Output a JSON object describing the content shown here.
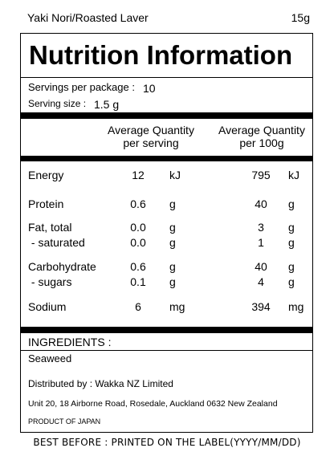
{
  "header": {
    "product": "Yaki Nori/Roasted Laver",
    "weight": "15g"
  },
  "title": "Nutrition Information",
  "servings": {
    "per_package_label": "Servings per package :",
    "per_package_value": "10",
    "size_label": "Serving size :",
    "size_value": "1.5 g"
  },
  "columns": {
    "per_serving": "Average Quantity\nper serving",
    "per_100g": "Average Quantity\nper 100g"
  },
  "rows": [
    {
      "name": "Energy",
      "serving": "12",
      "serving_unit": "kJ",
      "per100": "795",
      "per100_unit": "kJ"
    },
    {
      "name": "Protein",
      "serving": "0.6",
      "serving_unit": "g",
      "per100": "40",
      "per100_unit": "g"
    },
    {
      "name": "Fat, total",
      "serving": "0.0",
      "serving_unit": "g",
      "per100": "3",
      "per100_unit": "g"
    },
    {
      "name": " - saturated",
      "serving": "0.0",
      "serving_unit": "g",
      "per100": "1",
      "per100_unit": "g"
    },
    {
      "name": "Carbohydrate",
      "serving": "0.6",
      "serving_unit": "g",
      "per100": "40",
      "per100_unit": "g"
    },
    {
      "name": " - sugars",
      "serving": "0.1",
      "serving_unit": "g",
      "per100": "4",
      "per100_unit": "g"
    },
    {
      "name": "Sodium",
      "serving": "6",
      "serving_unit": "mg",
      "per100": "394",
      "per100_unit": "mg"
    }
  ],
  "ingredients": {
    "heading": "INGREDIENTS :",
    "text": "Seaweed"
  },
  "distributor": "Distributed by : Wakka NZ Limited",
  "address": "Unit 20, 18 Airborne Road, Rosedale, Auckland 0632 New Zealand",
  "origin": "PRODUCT OF JAPAN",
  "best_before": "BEST BEFORE : PRINTED ON THE LABEL(YYYY/MM/DD)"
}
